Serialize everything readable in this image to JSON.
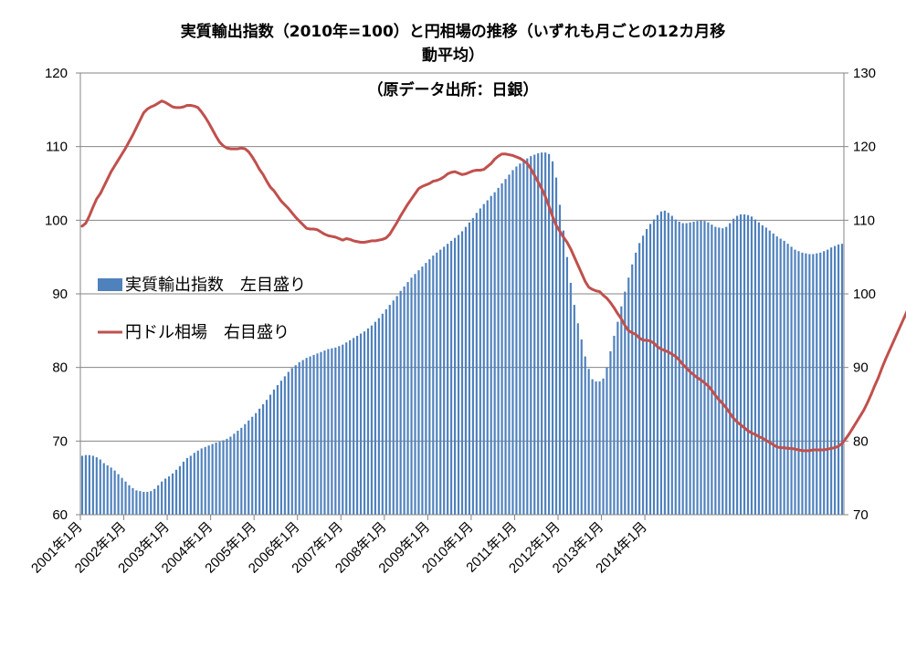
{
  "chart_data": {
    "type": "bar+line",
    "title_lines": [
      "実質輸出指数（2010年=100）と円相場の推移（いずれも月ごとの12カ月移",
      "動平均）",
      "（原データ出所：日銀）"
    ],
    "left_axis": {
      "ylim": [
        60,
        120
      ],
      "ticks": [
        "60",
        "70",
        "80",
        "90",
        "100",
        "110",
        "120"
      ]
    },
    "right_axis": {
      "ylim": [
        70,
        130
      ],
      "ticks": [
        "70",
        "80",
        "90",
        "100",
        "110",
        "120",
        "130"
      ]
    },
    "x_tick_labels": [
      "2001年1月",
      "2002年1月",
      "2003年1月",
      "2004年1月",
      "2005年1月",
      "2006年1月",
      "2007年1月",
      "2008年1月",
      "2009年1月",
      "2010年1月",
      "2011年1月",
      "2012年1月",
      "2013年1月",
      "2014年1月"
    ],
    "x_range": [
      "2001-01",
      "2014-02"
    ],
    "grid": "horizontal",
    "legend": {
      "position": "left-middle",
      "entries": [
        "実質輸出指数　左目盛り",
        "円ドル相場　右目盛り"
      ]
    },
    "colors": {
      "bars": "#4f81bd",
      "line": "#c0504d"
    },
    "series": [
      {
        "name": "実質輸出指数　左目盛り",
        "kind": "bar",
        "axis": "left",
        "values": [
          68,
          68.1,
          68.1,
          68,
          67.8,
          67.5,
          67,
          66.7,
          66.4,
          66,
          65.5,
          65,
          64.5,
          64,
          63.6,
          63.3,
          63.2,
          63.1,
          63.1,
          63.2,
          63.5,
          64,
          64.5,
          64.9,
          65.2,
          65.6,
          66.1,
          66.6,
          67.2,
          67.7,
          68,
          68.4,
          68.7,
          69,
          69.2,
          69.4,
          69.6,
          69.8,
          69.9,
          70.1,
          70.3,
          70.6,
          71,
          71.4,
          71.8,
          72.3,
          72.8,
          73.3,
          73.8,
          74.4,
          75,
          75.6,
          76.3,
          77,
          77.6,
          78.2,
          78.8,
          79.4,
          79.9,
          80.3,
          80.7,
          81,
          81.3,
          81.5,
          81.7,
          81.9,
          82.1,
          82.3,
          82.5,
          82.6,
          82.7,
          82.9,
          83.1,
          83.4,
          83.7,
          84,
          84.3,
          84.6,
          84.9,
          85.3,
          85.7,
          86.2,
          86.7,
          87.3,
          87.9,
          88.5,
          89.1,
          89.7,
          90.4,
          91,
          91.6,
          92.2,
          92.7,
          93.2,
          93.7,
          94.2,
          94.7,
          95.2,
          95.6,
          96,
          96.4,
          96.8,
          97.2,
          97.6,
          98,
          98.5,
          99.1,
          99.7,
          100.3,
          101,
          101.6,
          102.2,
          102.7,
          103.3,
          103.8,
          104.4,
          105,
          105.6,
          106.2,
          106.8,
          107.3,
          107.7,
          108.1,
          108.4,
          108.7,
          108.9,
          109.1,
          109.2,
          109.2,
          109,
          108,
          105.8,
          102.1,
          98.6,
          95,
          91.5,
          88.5,
          86,
          83.8,
          81.5,
          79.8,
          78.4,
          78.1,
          78.1,
          78.5,
          80,
          82.2,
          84.3,
          86.2,
          88.3,
          90.3,
          92.2,
          94,
          95.6,
          96.9,
          97.9,
          98.8,
          99.5,
          100.1,
          100.7,
          101.2,
          101.3,
          101,
          100.6,
          100.1,
          99.8,
          99.6,
          99.6,
          99.7,
          99.8,
          99.9,
          100,
          99.9,
          99.7,
          99.4,
          99.1,
          99,
          98.9,
          99.1,
          99.6,
          100.2,
          100.6,
          100.8,
          100.8,
          100.7,
          100.5,
          100.1,
          99.7,
          99.3,
          99,
          98.6,
          98.2,
          97.8,
          97.5,
          97.2,
          96.8,
          96.4,
          96,
          95.8,
          95.6,
          95.5,
          95.4,
          95.4,
          95.5,
          95.6,
          95.8,
          96,
          96.3,
          96.5,
          96.7,
          96.8
        ]
      },
      {
        "name": "円ドル相場　右目盛り",
        "kind": "line",
        "axis": "right",
        "values": [
          109.2,
          109.6,
          110.6,
          111.8,
          112.9,
          113.6,
          114.6,
          115.6,
          116.6,
          117.4,
          118.2,
          119,
          119.8,
          120.7,
          121.6,
          122.6,
          123.6,
          124.6,
          125.1,
          125.4,
          125.6,
          125.9,
          126.2,
          126,
          125.7,
          125.4,
          125.3,
          125.3,
          125.4,
          125.6,
          125.6,
          125.5,
          125.3,
          124.7,
          124,
          123.2,
          122.3,
          121.4,
          120.6,
          120.1,
          119.8,
          119.7,
          119.7,
          119.7,
          119.8,
          119.7,
          119.3,
          118.6,
          117.8,
          116.9,
          116.2,
          115.3,
          114.5,
          114,
          113.3,
          112.6,
          112.1,
          111.6,
          111,
          110.4,
          109.9,
          109.4,
          108.9,
          108.8,
          108.8,
          108.7,
          108.4,
          108.1,
          107.9,
          107.8,
          107.7,
          107.5,
          107.3,
          107.5,
          107.4,
          107.2,
          107.1,
          107,
          107,
          107.1,
          107.2,
          107.2,
          107.3,
          107.4,
          107.6,
          108.1,
          108.9,
          109.7,
          110.6,
          111.4,
          112.2,
          112.9,
          113.6,
          114.3,
          114.6,
          114.8,
          115,
          115.3,
          115.4,
          115.6,
          115.9,
          116.3,
          116.5,
          116.6,
          116.4,
          116.2,
          116.3,
          116.5,
          116.7,
          116.8,
          116.8,
          116.9,
          117.3,
          117.7,
          118.3,
          118.7,
          119,
          119,
          118.9,
          118.8,
          118.6,
          118.4,
          118.1,
          117.7,
          117,
          116.1,
          115.2,
          114.3,
          113.2,
          111.9,
          110.5,
          109.3,
          108.5,
          107.7,
          107,
          106.1,
          105,
          103.9,
          102.8,
          101.7,
          100.9,
          100.6,
          100.4,
          100.3,
          99.8,
          99.4,
          98.8,
          98.1,
          97.3,
          96.6,
          95.7,
          95,
          94.7,
          94.5,
          94,
          93.7,
          93.7,
          93.6,
          93.3,
          92.8,
          92.5,
          92.3,
          92.1,
          91.8,
          91.5,
          91,
          90.4,
          89.9,
          89.4,
          89,
          88.6,
          88.3,
          87.9,
          87.5,
          86.9,
          86.2,
          85.6,
          85.1,
          84.5,
          83.8,
          83.1,
          82.6,
          82.2,
          81.8,
          81.4,
          81.1,
          80.9,
          80.6,
          80.4,
          80.1,
          79.8,
          79.5,
          79.2,
          79.1,
          79.1,
          79,
          79,
          78.9,
          78.8,
          78.7,
          78.7,
          78.7,
          78.8,
          78.8,
          78.8,
          78.8,
          78.9,
          79,
          79.1,
          79.3,
          79.7,
          80.3,
          81,
          81.8,
          82.6,
          83.4,
          84.2,
          85.2,
          86.3,
          87.5,
          88.6,
          89.9,
          91.1,
          92.2,
          93.3,
          94.4,
          95.5,
          96.6,
          97.7,
          98.9
        ]
      }
    ]
  }
}
